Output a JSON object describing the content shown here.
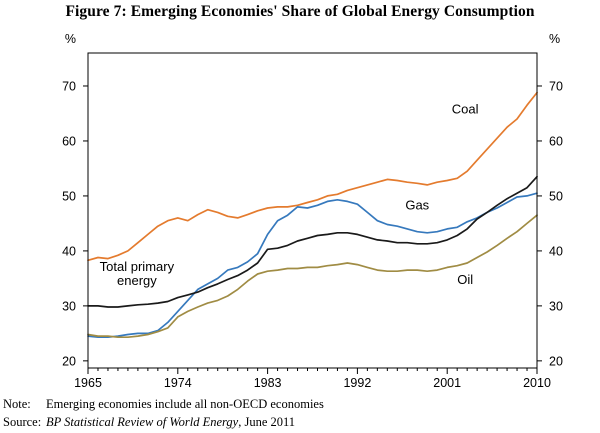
{
  "figure": {
    "title": "Figure 7: Emerging Economies' Share of Global Energy Consumption",
    "note_label": "Note:",
    "note_text": "Emerging economies include all non-OECD economies",
    "source_label": "Source:",
    "source_italic": "BP Statistical Review of World Energy",
    "source_rest": ", June 2011"
  },
  "chart_data": {
    "type": "line",
    "title": "Figure 7: Emerging Economies' Share of Global Energy Consumption",
    "unit_left": "%",
    "unit_right": "%",
    "xlim": [
      1965,
      2010
    ],
    "ylim": [
      18.7,
      76
    ],
    "yticks": [
      20,
      30,
      40,
      50,
      60,
      70
    ],
    "xticks": [
      1965,
      1974,
      1983,
      1992,
      2001,
      2010
    ],
    "grid": false,
    "legend": "inline-annotations",
    "x": [
      1965,
      1966,
      1967,
      1968,
      1969,
      1970,
      1971,
      1972,
      1973,
      1974,
      1975,
      1976,
      1977,
      1978,
      1979,
      1980,
      1981,
      1982,
      1983,
      1984,
      1985,
      1986,
      1987,
      1988,
      1989,
      1990,
      1991,
      1992,
      1993,
      1994,
      1995,
      1996,
      1997,
      1998,
      1999,
      2000,
      2001,
      2002,
      2003,
      2004,
      2005,
      2006,
      2007,
      2008,
      2009,
      2010
    ],
    "series": [
      {
        "name": "Coal",
        "color": "#E47B2E",
        "values": [
          38.3,
          38.8,
          38.6,
          39.2,
          40.0,
          41.5,
          43.0,
          44.5,
          45.5,
          46.0,
          45.5,
          46.6,
          47.5,
          47.0,
          46.3,
          46.0,
          46.6,
          47.3,
          47.8,
          48.0,
          48.0,
          48.3,
          48.8,
          49.3,
          50.0,
          50.3,
          51.0,
          51.5,
          52.0,
          52.5,
          53.0,
          52.8,
          52.5,
          52.3,
          52.0,
          52.5,
          52.8,
          53.2,
          54.5,
          56.5,
          58.5,
          60.5,
          62.5,
          64.0,
          66.5,
          68.8
        ]
      },
      {
        "name": "Gas",
        "color": "#3679BD",
        "values": [
          24.5,
          24.3,
          24.3,
          24.5,
          24.8,
          25.0,
          25.0,
          25.5,
          27.0,
          29.0,
          31.0,
          33.0,
          34.0,
          35.0,
          36.5,
          37.0,
          38.0,
          39.5,
          43.0,
          45.5,
          46.5,
          48.0,
          47.8,
          48.3,
          49.0,
          49.3,
          49.0,
          48.5,
          47.0,
          45.5,
          44.8,
          44.5,
          44.0,
          43.5,
          43.3,
          43.5,
          44.0,
          44.3,
          45.3,
          46.0,
          47.0,
          47.8,
          48.8,
          49.8,
          50.0,
          50.5
        ]
      },
      {
        "name": "Total primary energy",
        "color": "#1A1A1A",
        "values": [
          30.0,
          30.0,
          29.8,
          29.8,
          30.0,
          30.2,
          30.3,
          30.5,
          30.8,
          31.5,
          32.0,
          32.5,
          33.3,
          34.0,
          34.8,
          35.5,
          36.5,
          37.8,
          40.3,
          40.5,
          41.0,
          41.8,
          42.3,
          42.8,
          43.0,
          43.3,
          43.3,
          43.0,
          42.5,
          42.0,
          41.8,
          41.5,
          41.5,
          41.3,
          41.3,
          41.5,
          42.0,
          42.8,
          44.0,
          45.8,
          47.0,
          48.3,
          49.5,
          50.5,
          51.5,
          53.5
        ]
      },
      {
        "name": "Oil",
        "color": "#A08C44",
        "values": [
          24.8,
          24.5,
          24.5,
          24.3,
          24.3,
          24.5,
          24.8,
          25.3,
          26.0,
          28.0,
          29.0,
          29.8,
          30.5,
          31.0,
          31.8,
          33.0,
          34.5,
          35.8,
          36.3,
          36.5,
          36.8,
          36.8,
          37.0,
          37.0,
          37.3,
          37.5,
          37.8,
          37.5,
          37.0,
          36.5,
          36.3,
          36.3,
          36.5,
          36.5,
          36.3,
          36.5,
          37.0,
          37.3,
          37.8,
          38.8,
          39.8,
          41.0,
          42.3,
          43.5,
          45.0,
          46.5
        ]
      }
    ],
    "annotations": [
      {
        "text": "Coal",
        "x": 2002.8,
        "y": 65.0,
        "color": "#E47B2E"
      },
      {
        "text": "Gas",
        "x": 1998.0,
        "y": 47.5,
        "color": "#3679BD"
      },
      {
        "text": "Total primary\nenergy",
        "x": 1969.9,
        "y": 36.3,
        "color": "#1A1A1A"
      },
      {
        "text": "Oil",
        "x": 2002.8,
        "y": 34.0,
        "color": "#A08C44"
      }
    ]
  }
}
